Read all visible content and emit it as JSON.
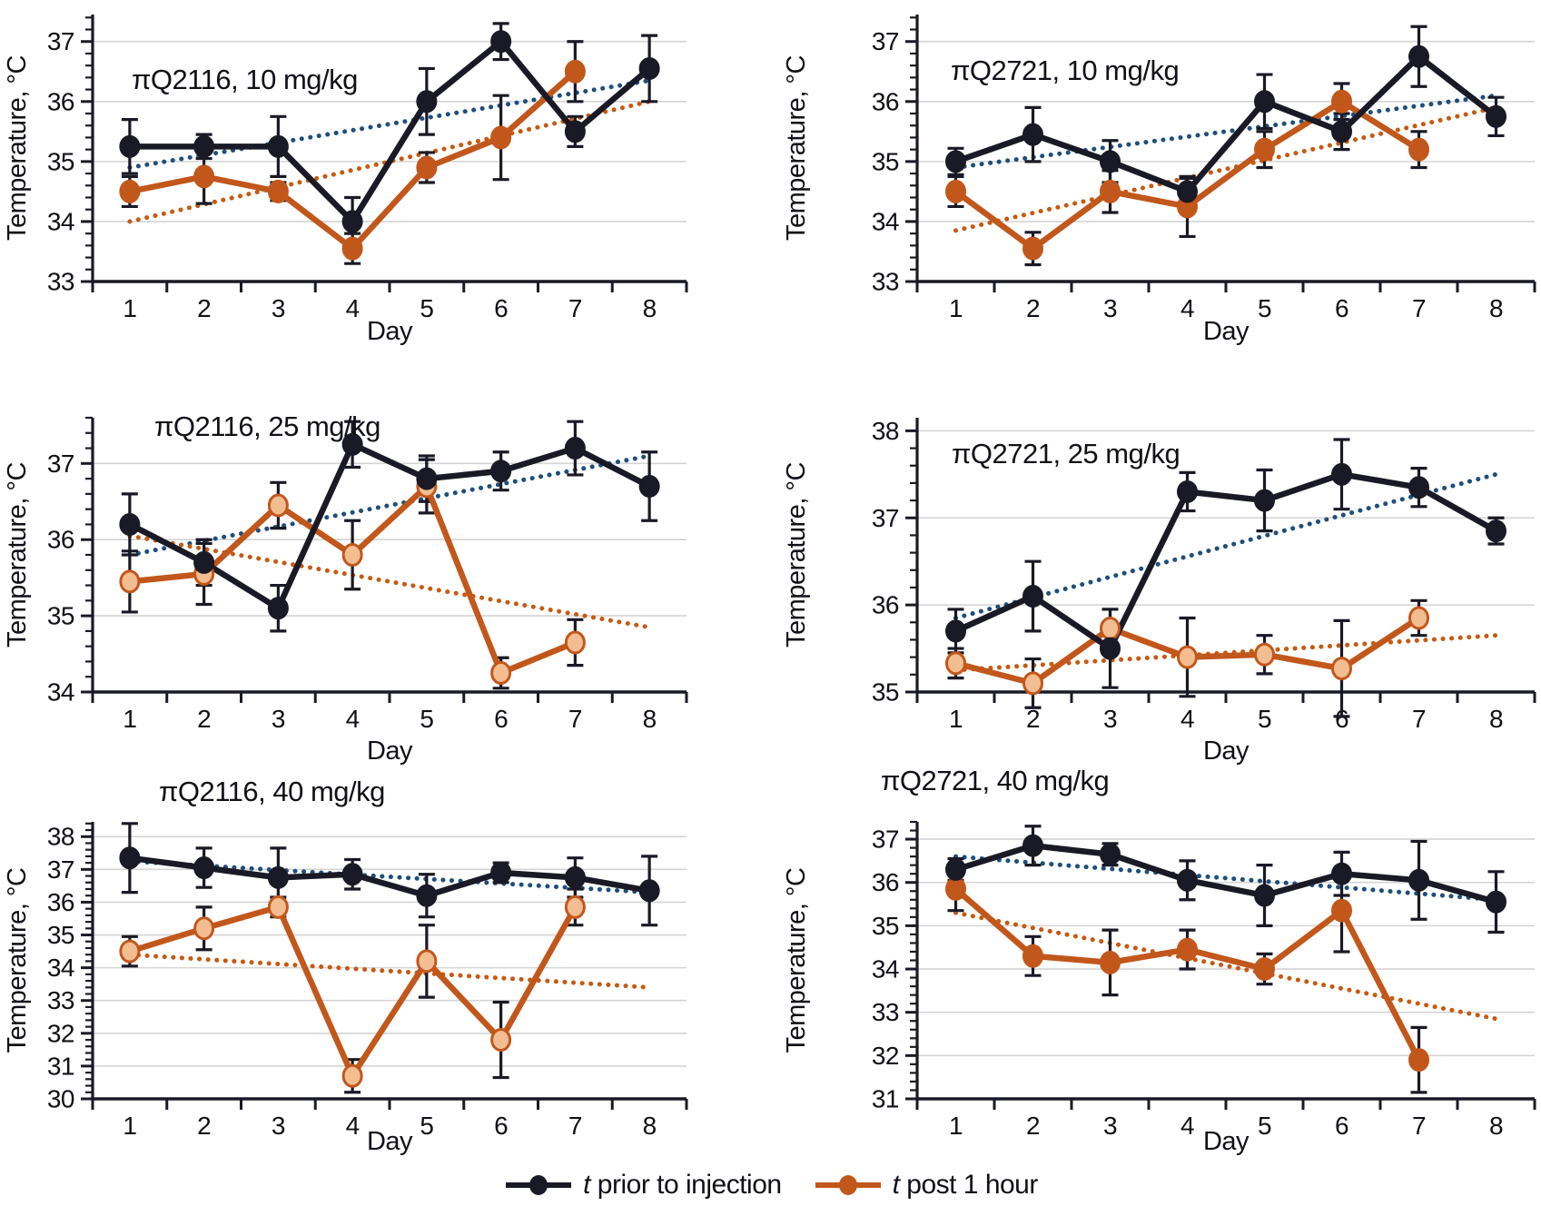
{
  "figure": {
    "legend": {
      "items": [
        {
          "id": "prior",
          "prefix": "t",
          "text": " prior to injection"
        },
        {
          "id": "post",
          "prefix": "t",
          "text": " post 1 hour"
        }
      ]
    },
    "colors": {
      "prior": "#1a1a26",
      "prior_trend": "#1f4e79",
      "post": "#c2571c",
      "post_trend": "#c55a11",
      "post_marker_pale_fill": "#f3bd92",
      "error_bar": "#1a1a26",
      "grid": "#d4d4d4",
      "axis": "#1a1a26",
      "text": "#101018"
    }
  },
  "chart_data": [
    {
      "type": "line",
      "title": "πQ2116, 10 mg/kg",
      "xlabel": "Day",
      "ylabel": "Temperature, °C",
      "x": [
        1,
        2,
        3,
        4,
        5,
        6,
        7,
        8
      ],
      "ylim": [
        33,
        37.45
      ],
      "yticks": [
        33,
        34,
        35,
        36,
        37
      ],
      "series": [
        {
          "name": "t prior to injection",
          "values": [
            35.25,
            35.25,
            35.25,
            34.0,
            36.0,
            37.0,
            35.5,
            36.55
          ],
          "err": [
            0.45,
            0.2,
            0.5,
            0.4,
            0.55,
            0.3,
            0.25,
            0.55
          ]
        },
        {
          "name": "t post 1 hour",
          "marker": "solid",
          "values": [
            34.5,
            34.75,
            34.5,
            33.55,
            34.9,
            35.4,
            36.5,
            null
          ],
          "err": [
            0.25,
            0.45,
            0.15,
            0.25,
            0.25,
            0.7,
            0.5,
            null
          ]
        }
      ],
      "trend_prior": [
        34.9,
        36.35
      ],
      "trend_post": [
        34.0,
        36.0
      ],
      "grid": "horizontal"
    },
    {
      "type": "line",
      "title": "πQ2721, 10 mg/kg",
      "xlabel": "Day",
      "ylabel": "Temperature, °C",
      "x": [
        1,
        2,
        3,
        4,
        5,
        6,
        7,
        8
      ],
      "ylim": [
        33,
        37.45
      ],
      "yticks": [
        33,
        34,
        35,
        36,
        37
      ],
      "series": [
        {
          "name": "t prior to injection",
          "values": [
            35.0,
            35.45,
            35.0,
            34.5,
            36.0,
            35.5,
            36.75,
            35.75
          ],
          "err": [
            0.22,
            0.45,
            0.35,
            0.22,
            0.45,
            0.3,
            0.5,
            0.32
          ]
        },
        {
          "name": "t post 1 hour",
          "marker": "solid",
          "values": [
            34.5,
            33.55,
            34.5,
            34.25,
            35.2,
            36.0,
            35.2,
            null
          ],
          "err": [
            0.25,
            0.27,
            0.35,
            0.5,
            0.3,
            0.3,
            0.3,
            null
          ]
        }
      ],
      "trend_prior": [
        34.9,
        36.1
      ],
      "trend_post": [
        33.85,
        35.9
      ],
      "grid": "horizontal"
    },
    {
      "type": "line",
      "title": "πQ2116, 25 mg/kg",
      "xlabel": "Day",
      "ylabel": "Temperature, °C",
      "x": [
        1,
        2,
        3,
        4,
        5,
        6,
        7,
        8
      ],
      "ylim": [
        34,
        37.6
      ],
      "yticks": [
        34,
        35,
        36,
        37
      ],
      "series": [
        {
          "name": "t prior to injection",
          "values": [
            36.2,
            35.7,
            35.1,
            37.25,
            36.8,
            36.9,
            37.2,
            36.7
          ],
          "err": [
            0.4,
            0.3,
            0.3,
            0.3,
            0.3,
            0.25,
            0.35,
            0.45
          ]
        },
        {
          "name": "t post 1 hour",
          "marker": "pale",
          "values": [
            35.45,
            35.55,
            36.45,
            35.8,
            36.7,
            34.25,
            34.65,
            null
          ],
          "err": [
            0.4,
            0.4,
            0.3,
            0.45,
            0.35,
            0.2,
            0.3,
            null
          ]
        }
      ],
      "trend_prior": [
        35.8,
        37.1
      ],
      "trend_post": [
        36.05,
        34.85
      ],
      "grid": "horizontal"
    },
    {
      "type": "line",
      "title": "πQ2721, 25 mg/kg",
      "xlabel": "Day",
      "ylabel": "Temperature, °C",
      "x": [
        1,
        2,
        3,
        4,
        5,
        6,
        7,
        8
      ],
      "ylim": [
        35,
        38.15
      ],
      "yticks": [
        35,
        36,
        37,
        38
      ],
      "series": [
        {
          "name": "t prior to injection",
          "values": [
            35.7,
            36.1,
            35.5,
            37.3,
            37.2,
            37.5,
            37.35,
            36.85
          ],
          "err": [
            0.25,
            0.4,
            0.45,
            0.22,
            0.35,
            0.4,
            0.22,
            0.15
          ]
        },
        {
          "name": "t post 1 hour",
          "marker": "pale",
          "values": [
            35.33,
            35.1,
            35.73,
            35.4,
            35.43,
            35.27,
            35.85,
            null
          ],
          "err": [
            0.17,
            0.28,
            0.22,
            0.45,
            0.22,
            0.55,
            0.2,
            null
          ]
        }
      ],
      "trend_prior": [
        35.85,
        37.5
      ],
      "trend_post": [
        35.25,
        35.65
      ],
      "grid": "horizontal"
    },
    {
      "type": "line",
      "title": "πQ2116, 40 mg/kg",
      "xlabel": "Day",
      "ylabel": "Temperature, °C",
      "x": [
        1,
        2,
        3,
        4,
        5,
        6,
        7,
        8
      ],
      "ylim": [
        30,
        38.45
      ],
      "yticks": [
        30,
        31,
        32,
        33,
        34,
        35,
        36,
        37,
        38
      ],
      "series": [
        {
          "name": "t prior to injection",
          "values": [
            37.35,
            37.05,
            36.75,
            36.85,
            36.2,
            36.9,
            36.75,
            36.35
          ],
          "err": [
            1.05,
            0.6,
            0.9,
            0.45,
            0.65,
            0.3,
            0.6,
            1.05
          ]
        },
        {
          "name": "t post 1 hour",
          "marker": "pale",
          "values": [
            34.5,
            35.2,
            35.85,
            30.7,
            34.2,
            31.8,
            35.85,
            null
          ],
          "err": [
            0.45,
            0.65,
            0.3,
            0.5,
            1.1,
            1.15,
            0.55,
            null
          ]
        }
      ],
      "trend_prior": [
        37.25,
        36.3
      ],
      "trend_post": [
        34.4,
        33.4
      ],
      "grid": "horizontal"
    },
    {
      "type": "line",
      "title": "πQ2721, 40 mg/kg",
      "xlabel": "Day",
      "ylabel": "Temperature, °C",
      "x": [
        1,
        2,
        3,
        4,
        5,
        6,
        7,
        8
      ],
      "ylim": [
        31,
        37.4
      ],
      "yticks": [
        31,
        32,
        33,
        34,
        35,
        36,
        37
      ],
      "series": [
        {
          "name": "t prior to injection",
          "values": [
            36.3,
            36.85,
            36.65,
            36.05,
            35.7,
            36.2,
            36.05,
            35.55
          ],
          "err": [
            0.25,
            0.45,
            0.25,
            0.45,
            0.7,
            0.5,
            0.9,
            0.7
          ]
        },
        {
          "name": "t post 1 hour",
          "marker": "solid",
          "values": [
            35.85,
            34.3,
            34.15,
            34.45,
            34.0,
            35.35,
            31.9,
            null
          ],
          "err": [
            0.5,
            0.45,
            0.75,
            0.45,
            0.35,
            0.95,
            0.75,
            null
          ]
        }
      ],
      "trend_prior": [
        36.6,
        35.6
      ],
      "trend_post": [
        35.3,
        32.85
      ],
      "grid": "horizontal"
    }
  ]
}
